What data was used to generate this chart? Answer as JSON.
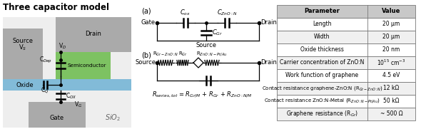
{
  "title": "Three capacitor model",
  "bg_color": "#ffffff",
  "table_headers": [
    "Parameter",
    "Value"
  ],
  "table_rows": [
    [
      "Length",
      "20 μm"
    ],
    [
      "Width",
      "20 μm"
    ],
    [
      "Oxide thickness",
      "20 nm"
    ],
    [
      "Carrier concentration of ZnO:N",
      "10¹⁵ cm⁻³"
    ],
    [
      "Work function of graphene",
      "4.5 eV"
    ],
    [
      "Contact resistance graphene-ZnO:N (R$_{Gr-ZnO:N}$)",
      "12 kΩ"
    ],
    [
      "Contact resistance ZnO:N-Metal (R$_{ZnO:N-Pt/Au}$)",
      "50 kΩ"
    ],
    [
      "Graphene resistance (R$_{Gr}$)",
      "~ 500 Ω"
    ]
  ],
  "diagram": {
    "source_color": "#aaaaaa",
    "drain_color": "#aaaaaa",
    "gate_color": "#aaaaaa",
    "oxide_color": "#82bbd8",
    "semi_color": "#7dc262",
    "bg_color": "#f0f0f0",
    "sio2_color": "#ffffff"
  }
}
